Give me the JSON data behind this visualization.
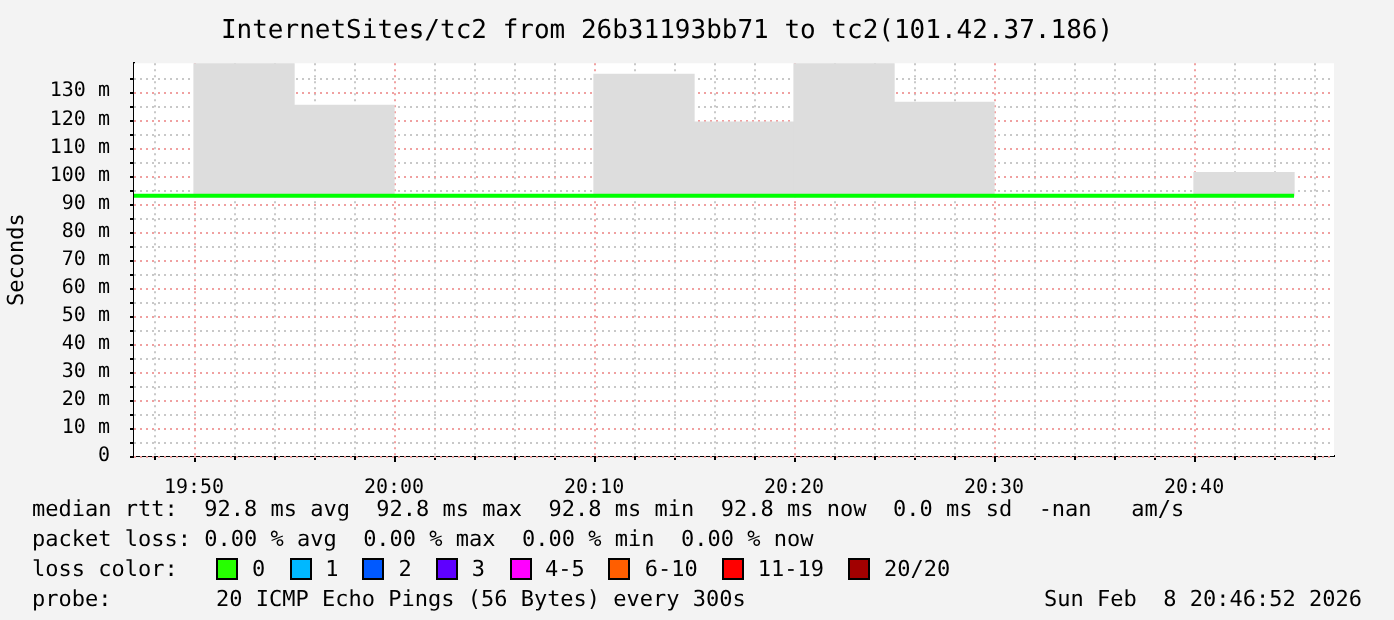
{
  "chart_data": {
    "type": "bar",
    "title": "InternetSites/tc2 from 26b31193bb71 to tc2(101.42.37.186)",
    "ylabel": "Seconds",
    "series": [
      {
        "color": "#dddddd",
        "x": [
          19.875,
          19.9583,
          20.0417,
          20.125,
          20.2083,
          20.2917,
          20.375,
          20.4583,
          20.5417,
          20.625,
          20.7083
        ],
        "base": [
          92.8,
          92.8,
          null,
          null,
          92.8,
          92.8,
          92.8,
          92.8,
          null,
          null,
          92.8
        ],
        "values": [
          47.2,
          32.2,
          null,
          null,
          43.2,
          26.2,
          47.2,
          33.2,
          null,
          null,
          8.2
        ]
      },
      {
        "type": "line",
        "color": "#00ff00",
        "x": [
          19.7833,
          20.75
        ],
        "values": [
          92.8,
          92.8
        ]
      }
    ],
    "xlim": [
      19.7833,
      20.7833
    ],
    "xticks": [
      {
        "value": 19.8,
        "label": null
      },
      {
        "value": 19.8333,
        "label": "19:50"
      },
      {
        "value": 19.8667,
        "label": null
      },
      {
        "value": 19.9,
        "label": null
      },
      {
        "value": 19.9333,
        "label": null
      },
      {
        "value": 19.9667,
        "label": null
      },
      {
        "value": 20,
        "label": "20:00"
      },
      {
        "value": 20.0333,
        "label": null
      },
      {
        "value": 20.0667,
        "label": null
      },
      {
        "value": 20.1,
        "label": null
      },
      {
        "value": 20.1333,
        "label": null
      },
      {
        "value": 20.1667,
        "label": "20:10"
      },
      {
        "value": 20.2,
        "label": null
      },
      {
        "value": 20.2333,
        "label": null
      },
      {
        "value": 20.2667,
        "label": null
      },
      {
        "value": 20.3,
        "label": null
      },
      {
        "value": 20.3333,
        "label": "20:20"
      },
      {
        "value": 20.3667,
        "label": null
      },
      {
        "value": 20.4,
        "label": null
      },
      {
        "value": 20.4333,
        "label": null
      },
      {
        "value": 20.4667,
        "label": null
      },
      {
        "value": 20.5,
        "label": "20:30"
      },
      {
        "value": 20.5333,
        "label": null
      },
      {
        "value": 20.5667,
        "label": null
      },
      {
        "value": 20.6,
        "label": null
      },
      {
        "value": 20.6333,
        "label": null
      },
      {
        "value": 20.6667,
        "label": "20:40"
      },
      {
        "value": 20.7,
        "label": null
      },
      {
        "value": 20.7333,
        "label": null
      },
      {
        "value": 20.7667,
        "label": null
      }
    ],
    "ylim": [
      0,
      140
    ],
    "yticks": [
      0,
      {
        "value": 5,
        "label": null
      },
      {
        "value": 10,
        "label": "10 m"
      },
      {
        "value": 15,
        "label": null
      },
      {
        "value": 20,
        "label": "20 m"
      },
      {
        "value": 25,
        "label": null
      },
      {
        "value": 30,
        "label": "30 m"
      },
      {
        "value": 35,
        "label": null
      },
      {
        "value": 40,
        "label": "40 m"
      },
      {
        "value": 45,
        "label": null
      },
      {
        "value": 50,
        "label": "50 m"
      },
      {
        "value": 55,
        "label": null
      },
      {
        "value": 60,
        "label": "60 m"
      },
      {
        "value": 65,
        "label": null
      },
      {
        "value": 70,
        "label": "70 m"
      },
      {
        "value": 75,
        "label": null
      },
      {
        "value": 80,
        "label": "80 m"
      },
      {
        "value": 85,
        "label": null
      },
      {
        "value": 90,
        "label": "90 m"
      },
      {
        "value": 95,
        "label": null
      },
      {
        "value": 100,
        "label": "100 m"
      },
      {
        "value": 105,
        "label": null
      },
      {
        "value": 110,
        "label": "110 m"
      },
      {
        "value": 115,
        "label": null
      },
      {
        "value": 120,
        "label": "120 m"
      },
      {
        "value": 125,
        "label": null
      },
      {
        "value": 130,
        "label": "130 m"
      },
      {
        "value": 135,
        "label": null
      }
    ],
    "grid": true,
    "annotations": [
      "median rtt:  92.8 ms avg  92.8 ms max  92.8 ms min  92.8 ms now  0.0 ms sd  -nan   am/s",
      "packet loss: 0.00 % avg  0.00 % max  0.00 % min  0.00 % now",
      "loss color:",
      "0",
      "1",
      "2",
      "3",
      "4-5",
      "6-10",
      "11-19",
      "20/20",
      "probe:",
      "20 ICMP Echo Pings (56 Bytes) every 300s",
      "Sun Feb  8 20:46:52 2026"
    ]
  }
}
